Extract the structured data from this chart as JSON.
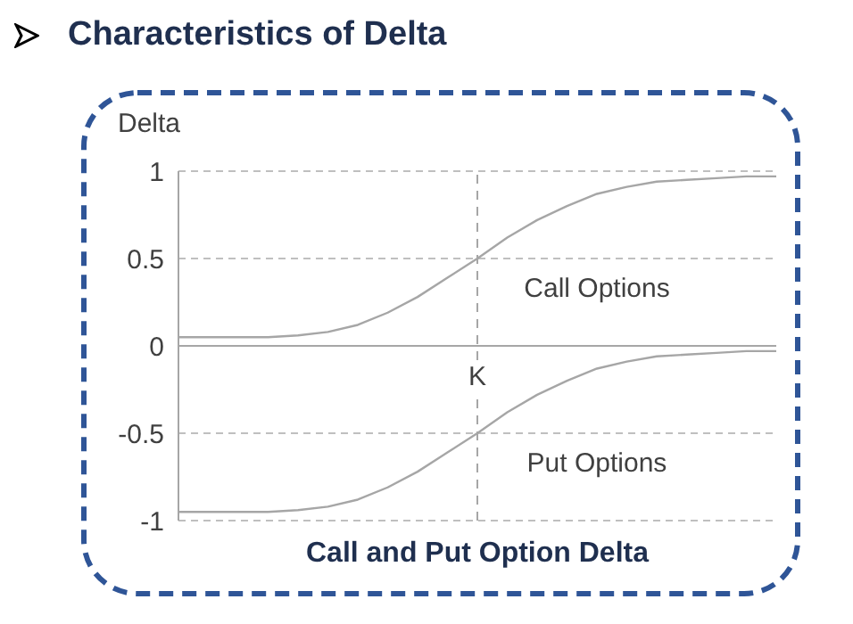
{
  "chart_data": {
    "type": "line",
    "title": "Characteristics of Delta",
    "subtitle": "Call and Put Option Delta",
    "ylabel": "Delta",
    "categories": [
      null,
      null,
      null,
      null,
      null,
      null,
      null,
      null,
      null,
      null,
      "K",
      null,
      null,
      null,
      null,
      null,
      null,
      null,
      null,
      null,
      null
    ],
    "series": [
      {
        "name": "Call Options",
        "color": "#a6a6a6",
        "values": [
          0.05,
          0.05,
          0.05,
          0.05,
          0.06,
          0.08,
          0.12,
          0.19,
          0.28,
          0.39,
          0.5,
          0.62,
          0.72,
          0.8,
          0.87,
          0.91,
          0.94,
          0.95,
          0.96,
          0.97,
          0.97
        ]
      },
      {
        "name": "Put Options",
        "color": "#a6a6a6",
        "values": [
          -0.95,
          -0.95,
          -0.95,
          -0.95,
          -0.94,
          -0.92,
          -0.88,
          -0.81,
          -0.72,
          -0.61,
          -0.5,
          -0.38,
          -0.28,
          -0.2,
          -0.13,
          -0.09,
          -0.06,
          -0.05,
          -0.04,
          -0.03,
          -0.03
        ]
      }
    ],
    "ylim": [
      -1,
      1
    ],
    "yticks": [
      -1,
      -0.5,
      0,
      0.5,
      1
    ],
    "grid": "y",
    "marker": "none",
    "line_style": "solid",
    "ref_lines": [
      {
        "axis": "y",
        "value": 0,
        "color": "#a6a6a6",
        "line_style": "solid"
      },
      {
        "axis": "x",
        "value": "K",
        "color": "#a6a6a6",
        "line_style": "dashed"
      }
    ]
  }
}
